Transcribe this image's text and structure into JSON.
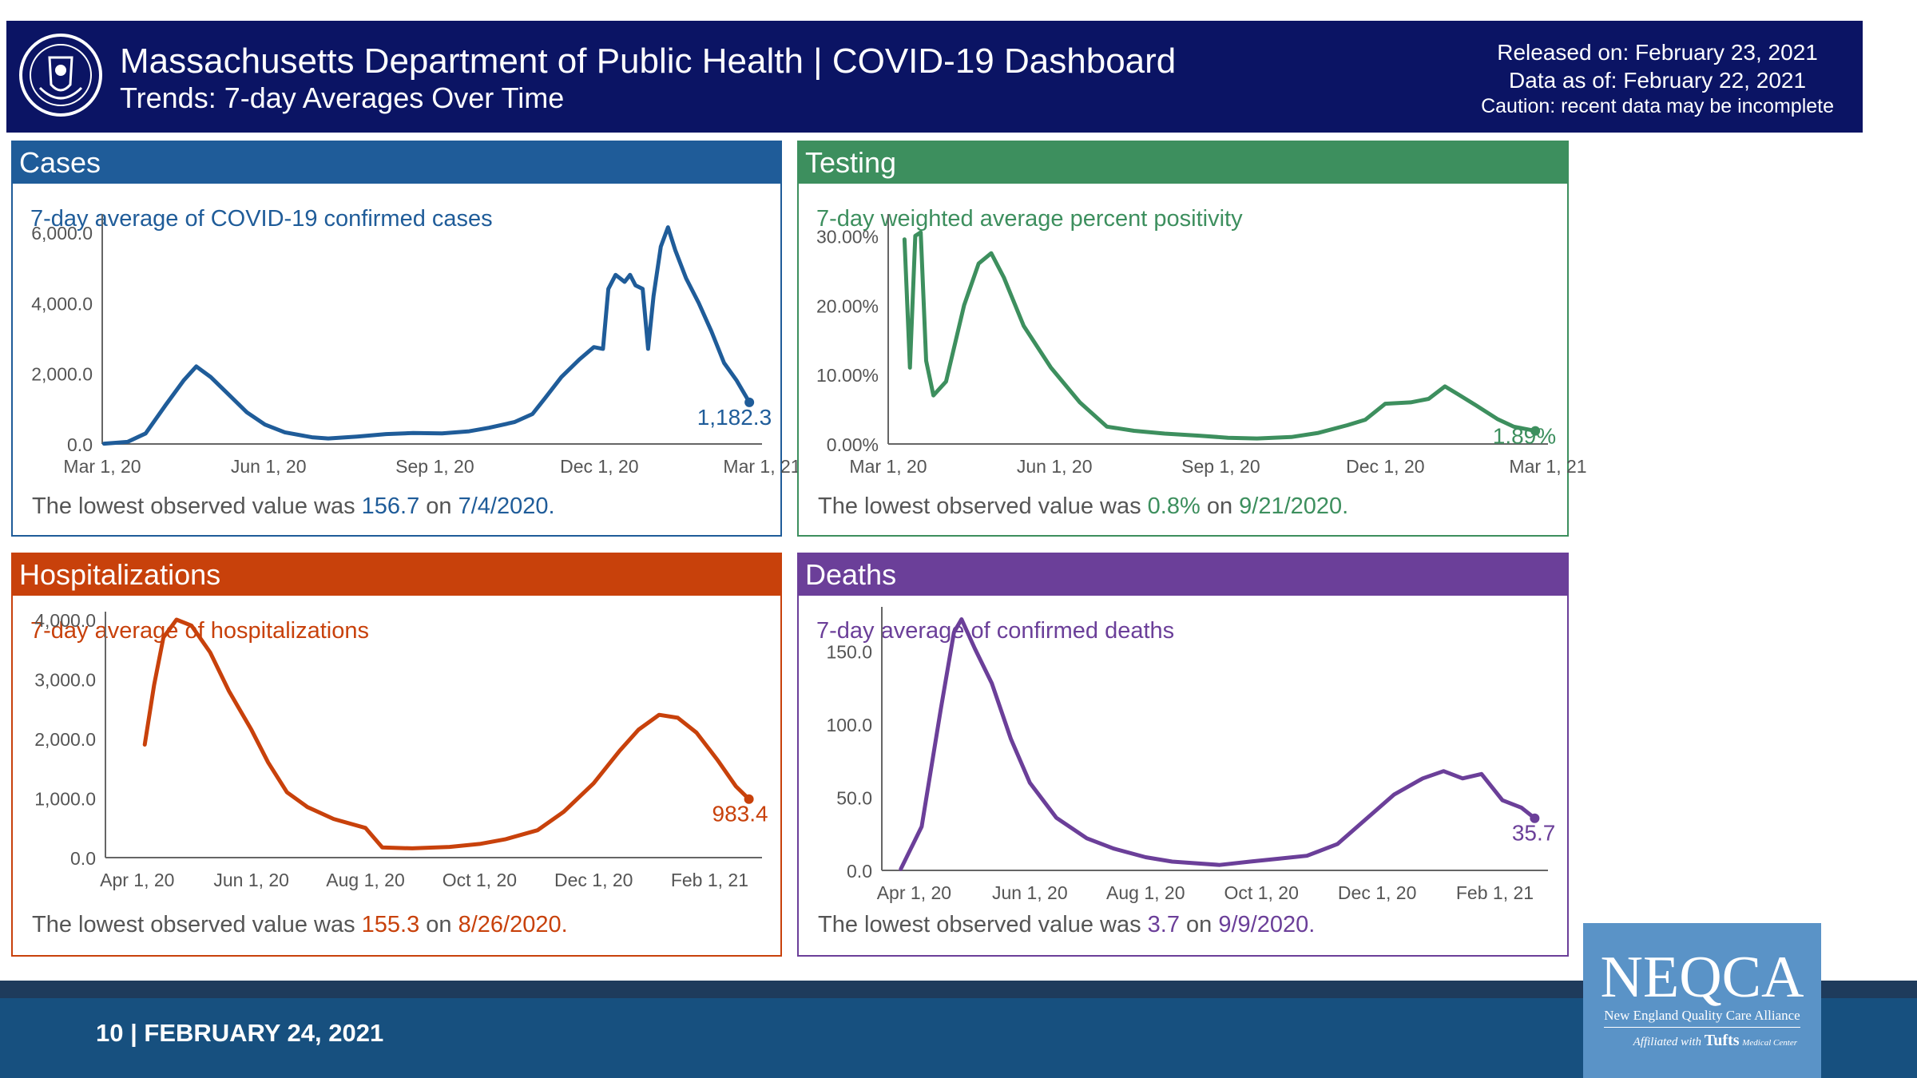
{
  "header": {
    "title": "Massachusetts Department of Public Health  |  COVID-19 Dashboard",
    "subtitle": "Trends: 7-day Averages Over Time",
    "released": "Released on: February 23, 2021",
    "data_as_of": "Data as of: February 22, 2021",
    "caution": "Caution: recent data may be incomplete"
  },
  "panels": {
    "cases": {
      "heading": "Cases",
      "subtitle": "7-day average of COVID-19 confirmed cases",
      "lowest_prefix": "The lowest observed value was ",
      "lowest_value": "156.7",
      "lowest_mid": " on ",
      "lowest_date": "7/4/2020",
      "lowest_suffix": ".",
      "color": "#1f5c99"
    },
    "testing": {
      "heading": "Testing",
      "subtitle": "7-day weighted average percent positivity",
      "lowest_prefix": "The lowest observed value was ",
      "lowest_value": "0.8%",
      "lowest_mid": " on ",
      "lowest_date": "9/21/2020",
      "lowest_suffix": ".",
      "color": "#3d8f5e"
    },
    "hosp": {
      "heading": "Hospitalizations",
      "subtitle": "7-day average of hospitalizations",
      "lowest_prefix": "The lowest observed value was ",
      "lowest_value": "155.3",
      "lowest_mid": " on ",
      "lowest_date": "8/26/2020",
      "lowest_suffix": ".",
      "color": "#c8410b"
    },
    "deaths": {
      "heading": "Deaths",
      "subtitle": "7-day average of confirmed deaths",
      "lowest_prefix": "The lowest observed value was ",
      "lowest_value": "3.7",
      "lowest_mid": " on ",
      "lowest_date": "9/9/2020",
      "lowest_suffix": ".",
      "color": "#6b3f99"
    }
  },
  "footer": {
    "text": "10 | FEBRUARY 24, 2021",
    "logo_big": "NEQCA",
    "logo_small": "New England Quality Care Alliance",
    "logo_aff": "Affiliated with",
    "logo_tufts": "Tufts",
    "logo_mc": "Medical Center"
  },
  "chart_data": [
    {
      "id": "cases",
      "type": "line",
      "title": "7-day average of COVID-19 confirmed cases",
      "color": "#1f5c99",
      "x_start": "2020-03-01",
      "x_end": "2021-03-01",
      "x_ticks": [
        "Mar 1, 20",
        "Jun 1, 20",
        "Sep 1, 20",
        "Dec 1, 20",
        "Mar 1, 21"
      ],
      "x_tick_dates": [
        "2020-03-01",
        "2020-06-01",
        "2020-09-01",
        "2020-12-01",
        "2021-03-01"
      ],
      "y_ticks": [
        "0.0",
        "2,000.0",
        "4,000.0",
        "6,000.0"
      ],
      "y_tick_values": [
        0,
        2000,
        4000,
        6000
      ],
      "ylim": [
        0,
        6300
      ],
      "last_label": "1,182.3",
      "points": [
        [
          "2020-03-02",
          10
        ],
        [
          "2020-03-15",
          60
        ],
        [
          "2020-03-25",
          300
        ],
        [
          "2020-04-05",
          1100
        ],
        [
          "2020-04-15",
          1800
        ],
        [
          "2020-04-22",
          2200
        ],
        [
          "2020-04-30",
          1900
        ],
        [
          "2020-05-10",
          1400
        ],
        [
          "2020-05-20",
          900
        ],
        [
          "2020-05-30",
          550
        ],
        [
          "2020-06-10",
          330
        ],
        [
          "2020-06-25",
          190
        ],
        [
          "2020-07-04",
          157
        ],
        [
          "2020-07-20",
          210
        ],
        [
          "2020-08-05",
          280
        ],
        [
          "2020-08-20",
          310
        ],
        [
          "2020-09-05",
          300
        ],
        [
          "2020-09-20",
          360
        ],
        [
          "2020-10-01",
          460
        ],
        [
          "2020-10-15",
          620
        ],
        [
          "2020-10-25",
          850
        ],
        [
          "2020-11-01",
          1300
        ],
        [
          "2020-11-10",
          1900
        ],
        [
          "2020-11-20",
          2400
        ],
        [
          "2020-11-28",
          2750
        ],
        [
          "2020-12-03",
          2700
        ],
        [
          "2020-12-06",
          4400
        ],
        [
          "2020-12-10",
          4800
        ],
        [
          "2020-12-15",
          4600
        ],
        [
          "2020-12-18",
          4800
        ],
        [
          "2020-12-21",
          4500
        ],
        [
          "2020-12-25",
          4400
        ],
        [
          "2020-12-28",
          2700
        ],
        [
          "2020-12-31",
          4200
        ],
        [
          "2021-01-04",
          5600
        ],
        [
          "2021-01-08",
          6150
        ],
        [
          "2021-01-12",
          5500
        ],
        [
          "2021-01-18",
          4700
        ],
        [
          "2021-01-25",
          4000
        ],
        [
          "2021-02-01",
          3200
        ],
        [
          "2021-02-08",
          2300
        ],
        [
          "2021-02-15",
          1800
        ],
        [
          "2021-02-22",
          1182.3
        ]
      ]
    },
    {
      "id": "testing",
      "type": "line",
      "title": "7-day weighted average percent positivity",
      "color": "#3d8f5e",
      "x_start": "2020-03-01",
      "x_end": "2021-03-01",
      "x_ticks": [
        "Mar 1, 20",
        "Jun 1, 20",
        "Sep 1, 20",
        "Dec 1, 20",
        "Mar 1, 21"
      ],
      "x_tick_dates": [
        "2020-03-01",
        "2020-06-01",
        "2020-09-01",
        "2020-12-01",
        "2021-03-01"
      ],
      "y_ticks": [
        "0.00%",
        "10.00%",
        "20.00%",
        "30.00%"
      ],
      "y_tick_values": [
        0,
        10,
        20,
        30
      ],
      "ylim": [
        0,
        32
      ],
      "last_label": "1.89%",
      "points": [
        [
          "2020-03-10",
          29.5
        ],
        [
          "2020-03-13",
          11
        ],
        [
          "2020-03-16",
          30
        ],
        [
          "2020-03-19",
          30.5
        ],
        [
          "2020-03-22",
          12
        ],
        [
          "2020-03-26",
          7
        ],
        [
          "2020-04-02",
          9
        ],
        [
          "2020-04-12",
          20
        ],
        [
          "2020-04-20",
          26
        ],
        [
          "2020-04-27",
          27.5
        ],
        [
          "2020-05-04",
          24
        ],
        [
          "2020-05-15",
          17
        ],
        [
          "2020-05-30",
          11
        ],
        [
          "2020-06-15",
          6
        ],
        [
          "2020-06-30",
          2.5
        ],
        [
          "2020-07-15",
          1.9
        ],
        [
          "2020-08-01",
          1.5
        ],
        [
          "2020-08-20",
          1.2
        ],
        [
          "2020-09-05",
          0.9
        ],
        [
          "2020-09-21",
          0.8
        ],
        [
          "2020-10-10",
          1.0
        ],
        [
          "2020-10-25",
          1.6
        ],
        [
          "2020-11-10",
          2.7
        ],
        [
          "2020-11-20",
          3.5
        ],
        [
          "2020-12-01",
          5.8
        ],
        [
          "2020-12-15",
          6.0
        ],
        [
          "2020-12-25",
          6.5
        ],
        [
          "2021-01-03",
          8.3
        ],
        [
          "2021-01-10",
          7.2
        ],
        [
          "2021-01-20",
          5.6
        ],
        [
          "2021-02-01",
          3.6
        ],
        [
          "2021-02-10",
          2.5
        ],
        [
          "2021-02-22",
          1.89
        ]
      ]
    },
    {
      "id": "hosp",
      "type": "line",
      "title": "7-day average of hospitalizations",
      "color": "#c8410b",
      "x_start": "2020-03-15",
      "x_end": "2021-03-01",
      "x_ticks": [
        "Apr 1, 20",
        "Jun 1, 20",
        "Aug 1, 20",
        "Oct 1, 20",
        "Dec 1, 20",
        "Feb 1, 21"
      ],
      "x_tick_dates": [
        "2020-04-01",
        "2020-06-01",
        "2020-08-01",
        "2020-10-01",
        "2020-12-01",
        "2021-02-01"
      ],
      "y_ticks": [
        "0.0",
        "1,000.0",
        "2,000.0",
        "3,000.0",
        "4,000.0"
      ],
      "y_tick_values": [
        0,
        1000,
        2000,
        3000,
        4000
      ],
      "ylim": [
        0,
        4000
      ],
      "last_label": "983.4",
      "points": [
        [
          "2020-04-05",
          1900
        ],
        [
          "2020-04-10",
          2900
        ],
        [
          "2020-04-15",
          3700
        ],
        [
          "2020-04-22",
          4000
        ],
        [
          "2020-04-30",
          3900
        ],
        [
          "2020-05-10",
          3450
        ],
        [
          "2020-05-20",
          2800
        ],
        [
          "2020-06-01",
          2150
        ],
        [
          "2020-06-10",
          1600
        ],
        [
          "2020-06-20",
          1100
        ],
        [
          "2020-07-01",
          850
        ],
        [
          "2020-07-15",
          650
        ],
        [
          "2020-08-01",
          500
        ],
        [
          "2020-08-10",
          170
        ],
        [
          "2020-08-26",
          155.3
        ],
        [
          "2020-09-15",
          180
        ],
        [
          "2020-10-01",
          230
        ],
        [
          "2020-10-15",
          310
        ],
        [
          "2020-11-01",
          460
        ],
        [
          "2020-11-15",
          770
        ],
        [
          "2020-12-01",
          1250
        ],
        [
          "2020-12-15",
          1800
        ],
        [
          "2020-12-25",
          2150
        ],
        [
          "2021-01-05",
          2400
        ],
        [
          "2021-01-15",
          2350
        ],
        [
          "2021-01-25",
          2100
        ],
        [
          "2021-02-05",
          1650
        ],
        [
          "2021-02-15",
          1200
        ],
        [
          "2021-02-22",
          983.4
        ]
      ]
    },
    {
      "id": "deaths",
      "type": "line",
      "title": "7-day average of confirmed deaths",
      "color": "#6b3f99",
      "x_start": "2020-03-15",
      "x_end": "2021-03-01",
      "x_ticks": [
        "Apr 1, 20",
        "Jun 1, 20",
        "Aug 1, 20",
        "Oct 1, 20",
        "Dec 1, 20",
        "Feb 1, 21"
      ],
      "x_tick_dates": [
        "2020-04-01",
        "2020-06-01",
        "2020-08-01",
        "2020-10-01",
        "2020-12-01",
        "2021-02-01"
      ],
      "y_ticks": [
        "0.0",
        "50.0",
        "100.0",
        "150.0"
      ],
      "y_tick_values": [
        0,
        50,
        100,
        150
      ],
      "ylim": [
        0,
        175
      ],
      "last_label": "35.7",
      "points": [
        [
          "2020-03-25",
          1
        ],
        [
          "2020-04-05",
          30
        ],
        [
          "2020-04-15",
          110
        ],
        [
          "2020-04-22",
          163
        ],
        [
          "2020-04-26",
          172
        ],
        [
          "2020-05-03",
          152
        ],
        [
          "2020-05-12",
          128
        ],
        [
          "2020-05-22",
          90
        ],
        [
          "2020-06-01",
          60
        ],
        [
          "2020-06-15",
          36
        ],
        [
          "2020-07-01",
          22
        ],
        [
          "2020-07-15",
          15
        ],
        [
          "2020-08-01",
          9
        ],
        [
          "2020-08-15",
          6
        ],
        [
          "2020-09-09",
          3.7
        ],
        [
          "2020-09-25",
          6
        ],
        [
          "2020-10-10",
          8
        ],
        [
          "2020-10-25",
          10
        ],
        [
          "2020-11-10",
          18
        ],
        [
          "2020-11-25",
          35
        ],
        [
          "2020-12-10",
          52
        ],
        [
          "2020-12-25",
          63
        ],
        [
          "2021-01-05",
          68
        ],
        [
          "2021-01-15",
          63
        ],
        [
          "2021-01-25",
          66
        ],
        [
          "2021-02-05",
          48
        ],
        [
          "2021-02-15",
          43
        ],
        [
          "2021-02-22",
          35.7
        ]
      ]
    }
  ]
}
